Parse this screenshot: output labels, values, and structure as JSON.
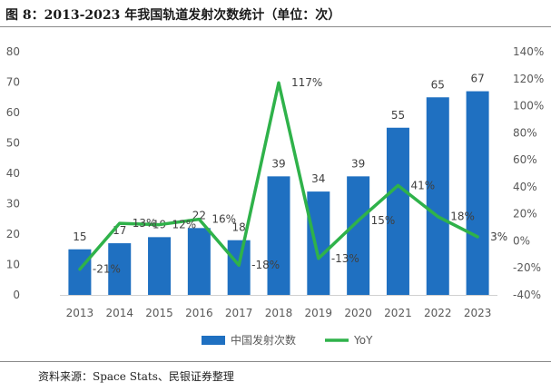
{
  "header": {
    "title": "图 8：2013-2023 年我国轨道发射次数统计（单位：次）"
  },
  "footer": {
    "source": "资料来源：Space Stats、民银证券整理"
  },
  "chart_data": {
    "type": "bar",
    "categories": [
      "2013",
      "2014",
      "2015",
      "2016",
      "2017",
      "2018",
      "2019",
      "2020",
      "2021",
      "2022",
      "2023"
    ],
    "series": [
      {
        "name": "中国发射次数",
        "type": "bar",
        "axis": "left",
        "color": "#1f70c1",
        "values": [
          15,
          17,
          19,
          22,
          18,
          39,
          34,
          39,
          55,
          65,
          67
        ],
        "labels": [
          "15",
          "17",
          "19",
          "22",
          "18",
          "39",
          "34",
          "39",
          "55",
          "65",
          "67"
        ]
      },
      {
        "name": "YoY",
        "type": "line",
        "axis": "right",
        "color": "#2fb24a",
        "values": [
          -21,
          13,
          12,
          16,
          -18,
          117,
          -13,
          15,
          41,
          18,
          3
        ],
        "labels": [
          "-21%",
          "13%",
          "12%",
          "16%",
          "-18%",
          "117%",
          "-13%",
          "15%",
          "41%",
          "18%",
          "3%"
        ]
      }
    ],
    "y_left": {
      "min": 0,
      "max": 80,
      "ticks": [
        "0",
        "10",
        "20",
        "30",
        "40",
        "50",
        "60",
        "70",
        "80"
      ]
    },
    "y_right": {
      "min": -40,
      "max": 140,
      "ticks": [
        "-40%",
        "-20%",
        "0%",
        "20%",
        "40%",
        "60%",
        "80%",
        "100%",
        "120%",
        "140%"
      ]
    },
    "grid": false,
    "legend": {
      "position": "bottom",
      "entries": [
        "中国发射次数",
        "YoY"
      ]
    }
  }
}
